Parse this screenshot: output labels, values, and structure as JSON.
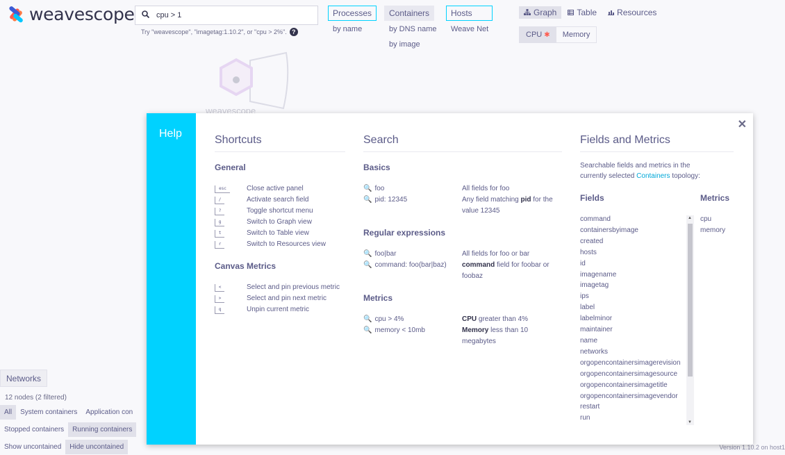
{
  "app": {
    "name": "weavescope",
    "version": "Version 1.10.2 on host1"
  },
  "search": {
    "query": "cpu > 1",
    "hint": "Try \"weavescope\", \"imagetag:1.10.2\", or \"cpu > 2%\"."
  },
  "topologies": [
    {
      "label": "Processes",
      "subs": [
        "by name"
      ]
    },
    {
      "label": "Containers",
      "subs": [
        "by DNS name",
        "by image"
      ]
    },
    {
      "label": "Hosts",
      "subs": [
        "Weave Net"
      ]
    }
  ],
  "views": {
    "graph": "Graph",
    "table": "Table",
    "resources": "Resources"
  },
  "metrics": {
    "cpu": "CPU",
    "memory": "Memory"
  },
  "bg_node": {
    "label": "weavescope"
  },
  "bottom": {
    "networks": "Networks",
    "nodes_count": "12 nodes (2 filtered)",
    "filters_row1": [
      "All",
      "System containers",
      "Application con"
    ],
    "filters_row2": [
      "Stopped containers",
      "Running containers"
    ],
    "filters_row3": [
      "Show uncontained",
      "Hide uncontained"
    ]
  },
  "help": {
    "title": "Help",
    "shortcuts": {
      "title": "Shortcuts",
      "general_title": "General",
      "general": [
        {
          "key": "esc",
          "label": "Close active panel"
        },
        {
          "key": "/",
          "label": "Activate search field"
        },
        {
          "key": "?",
          "label": "Toggle shortcut menu"
        },
        {
          "key": "g",
          "label": "Switch to Graph view"
        },
        {
          "key": "t",
          "label": "Switch to Table view"
        },
        {
          "key": "r",
          "label": "Switch to Resources view"
        }
      ],
      "canvas_title": "Canvas Metrics",
      "canvas": [
        {
          "key": "<",
          "label": "Select and pin previous metric"
        },
        {
          "key": ">",
          "label": "Select and pin next metric"
        },
        {
          "key": "q",
          "label": "Unpin current metric"
        }
      ]
    },
    "search": {
      "title": "Search",
      "basics_title": "Basics",
      "basics": [
        {
          "q": "foo",
          "d1": "All fields for foo",
          "d2": ""
        },
        {
          "q": "pid: 12345",
          "d1": "Any field matching pid for the",
          "d2": "value 12345"
        }
      ],
      "regex_title": "Regular expressions",
      "regex": [
        {
          "q": "foo|bar",
          "d1": "All fields for foo or bar",
          "d2": ""
        },
        {
          "q": "command: foo(bar|baz)",
          "d1": "command field for foobar or",
          "d2": "foobaz"
        }
      ],
      "metrics_title": "Metrics",
      "metrics": [
        {
          "q": "cpu > 4%",
          "d1": "CPU greater than 4%",
          "d2": ""
        },
        {
          "q": "memory < 10mb",
          "d1": "Memory less than 10",
          "d2": "megabytes"
        }
      ]
    },
    "fields_metrics": {
      "title": "Fields and Metrics",
      "intro1": "Searchable fields and metrics in the",
      "intro2a": "currently selected ",
      "intro2_link": "Containers",
      "intro2b": " topology:",
      "fields_title": "Fields",
      "metrics_title": "Metrics",
      "fields": [
        "command",
        "containersbyimage",
        "created",
        "hosts",
        "id",
        "imagename",
        "imagetag",
        "ips",
        "label",
        "labelminor",
        "maintainer",
        "name",
        "networks",
        "orgopencontainersimagerevision",
        "orgopencontainersimagesource",
        "orgopencontainersimagetitle",
        "orgopencontainersimagevendor",
        "restart",
        "run"
      ],
      "metrics": [
        "cpu",
        "memory"
      ]
    }
  }
}
